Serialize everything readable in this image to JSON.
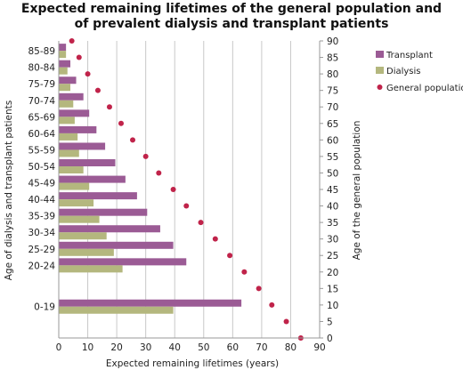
{
  "chart_data": {
    "type": "bar",
    "orientation": "horizontal",
    "title": [
      "Expected remaining lifetimes of the general population and",
      "of prevalent dialysis and transplant patients"
    ],
    "xlabel": "Expected remaining lifetimes (years)",
    "ylabel_left": "Age of dialysis and transplant patients",
    "ylabel_right": "Age of the general population",
    "xlim": [
      0,
      90
    ],
    "x_ticks": [
      0,
      10,
      20,
      30,
      40,
      50,
      60,
      70,
      80,
      90
    ],
    "right_ylim": [
      0,
      90
    ],
    "right_ticks": [
      0,
      5,
      10,
      15,
      20,
      25,
      30,
      35,
      40,
      45,
      50,
      55,
      60,
      65,
      70,
      75,
      80,
      85,
      90
    ],
    "grid": "vertical",
    "legend_position": "right",
    "groups": [
      {
        "label": "0-19",
        "age_mid": 9.5
      },
      {
        "label": "20-24",
        "age_mid": 22
      },
      {
        "label": "25-29",
        "age_mid": 27
      },
      {
        "label": "30-34",
        "age_mid": 32
      },
      {
        "label": "35-39",
        "age_mid": 37
      },
      {
        "label": "40-44",
        "age_mid": 42
      },
      {
        "label": "45-49",
        "age_mid": 47
      },
      {
        "label": "50-54",
        "age_mid": 52
      },
      {
        "label": "55-59",
        "age_mid": 57
      },
      {
        "label": "60-64",
        "age_mid": 62
      },
      {
        "label": "65-69",
        "age_mid": 67
      },
      {
        "label": "70-74",
        "age_mid": 72
      },
      {
        "label": "75-79",
        "age_mid": 77
      },
      {
        "label": "80-84",
        "age_mid": 82
      },
      {
        "label": "85-89",
        "age_mid": 87
      }
    ],
    "series": [
      {
        "name": "Transplant",
        "kind": "bar",
        "color": "#9b5b95",
        "values": [
          63,
          44,
          39.5,
          35,
          30.5,
          27,
          23,
          19.5,
          16,
          13,
          10.5,
          8.5,
          6,
          4,
          2.5
        ]
      },
      {
        "name": "Dialysis",
        "kind": "bar",
        "color": "#b4b77e",
        "values": [
          39.5,
          22,
          19,
          16.5,
          14,
          12,
          10.5,
          8.5,
          7,
          6.5,
          5.5,
          5,
          4,
          3,
          2.5
        ]
      },
      {
        "name": "General population",
        "kind": "scatter",
        "color": "#c0234a",
        "points": [
          {
            "age": 0,
            "years": 83.5
          },
          {
            "age": 5,
            "years": 78.5
          },
          {
            "age": 10,
            "years": 73.5
          },
          {
            "age": 15,
            "years": 69
          },
          {
            "age": 20,
            "years": 64
          },
          {
            "age": 25,
            "years": 59
          },
          {
            "age": 30,
            "years": 54
          },
          {
            "age": 35,
            "years": 49
          },
          {
            "age": 40,
            "years": 44
          },
          {
            "age": 45,
            "years": 39.5
          },
          {
            "age": 50,
            "years": 34.5
          },
          {
            "age": 55,
            "years": 30
          },
          {
            "age": 60,
            "years": 25.5
          },
          {
            "age": 65,
            "years": 21.5
          },
          {
            "age": 70,
            "years": 17.5
          },
          {
            "age": 75,
            "years": 13.5
          },
          {
            "age": 80,
            "years": 10
          },
          {
            "age": 85,
            "years": 7
          },
          {
            "age": 90,
            "years": 4.5
          }
        ]
      }
    ]
  }
}
